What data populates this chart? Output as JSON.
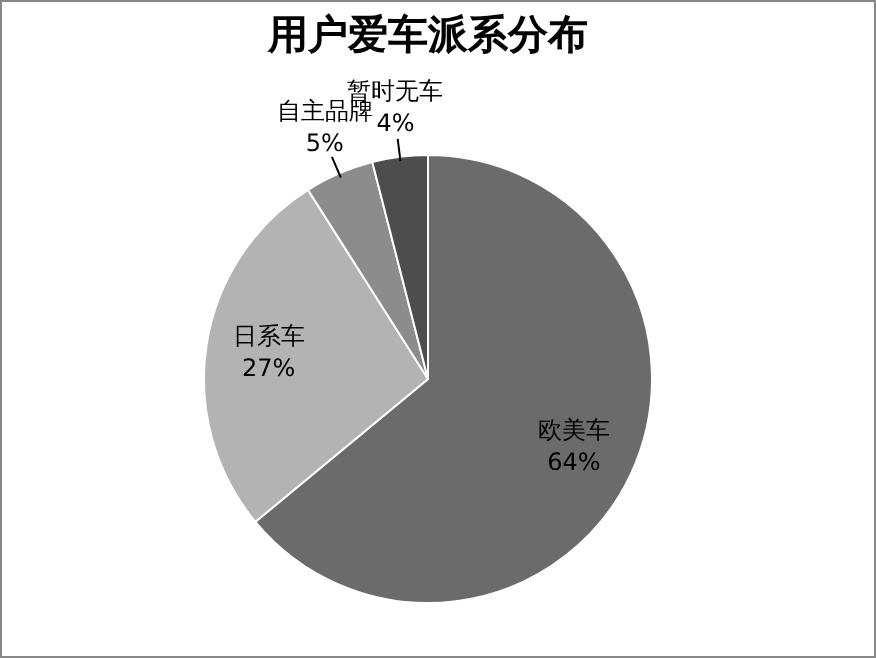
{
  "chart_data": {
    "type": "pie",
    "title": "用户爱车派系分布",
    "categories": [
      "欧美车",
      "日系车",
      "自主品牌",
      "暂时无车"
    ],
    "values": [
      64,
      27,
      5,
      4
    ],
    "value_labels": [
      "64%",
      "27%",
      "5%",
      "4%"
    ],
    "colors": [
      "#6b6b6b",
      "#b3b3b3",
      "#8c8c8c",
      "#4d4d4d"
    ],
    "legend": false
  }
}
